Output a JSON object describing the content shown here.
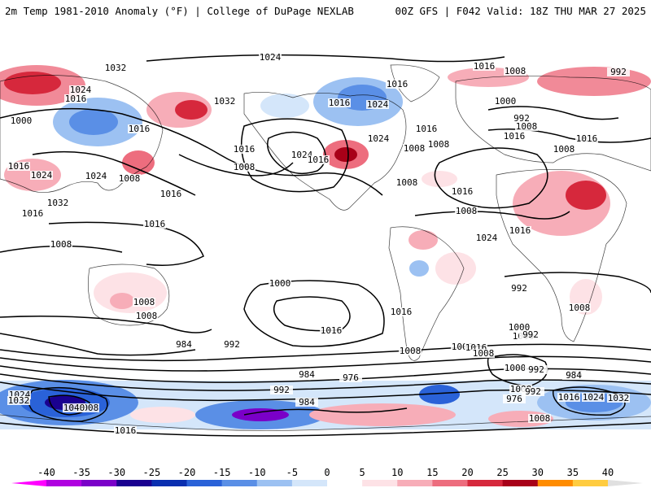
{
  "header": {
    "title": "2m Temp 1981-2010 Anomaly (°F) | College of DuPage NEXLAB",
    "run_info": "00Z GFS | F042 Valid: 18Z THU MAR 27 2025"
  },
  "colorbar": {
    "ticks": [
      "-40",
      "-35",
      "-30",
      "-25",
      "-20",
      "-15",
      "-10",
      "-5",
      "0",
      "5",
      "10",
      "15",
      "20",
      "25",
      "30",
      "35",
      "40"
    ],
    "colors": [
      "#ff00ff",
      "#b000e0",
      "#7a00c8",
      "#1a0090",
      "#0a2fb0",
      "#2a62d8",
      "#5a8fe6",
      "#9cc1f2",
      "#d4e6fa",
      "#ffffff",
      "#fde2e6",
      "#f7adb8",
      "#ed6d7e",
      "#d6283c",
      "#a80018",
      "#ff8c00",
      "#ffcc40"
    ]
  },
  "pressure_labels": [
    "1024",
    "1016",
    "1008",
    "992",
    "1016",
    "1024",
    "1000",
    "992",
    "1008",
    "1016",
    "1008",
    "1016",
    "1032",
    "1024",
    "1016",
    "1032",
    "1016",
    "1024",
    "1016",
    "1008",
    "1016",
    "1008",
    "1016",
    "1024",
    "1016",
    "1008",
    "1000",
    "1032",
    "1016",
    "1024",
    "1008",
    "1016",
    "1024",
    "1016",
    "1008",
    "1016",
    "1008",
    "1016",
    "1024",
    "1016",
    "1008",
    "1000",
    "992",
    "1008",
    "1016",
    "1008",
    "1008",
    "1016",
    "1008",
    "1008",
    "1000",
    "984",
    "992",
    "1000",
    "992",
    "984",
    "976",
    "992",
    "984",
    "976",
    "1000",
    "992",
    "976",
    "1016",
    "1024",
    "1032",
    "1008",
    "1016",
    "1008",
    "1000",
    "992",
    "984",
    "1008",
    "1024",
    "1032",
    "1040",
    "1016"
  ]
}
